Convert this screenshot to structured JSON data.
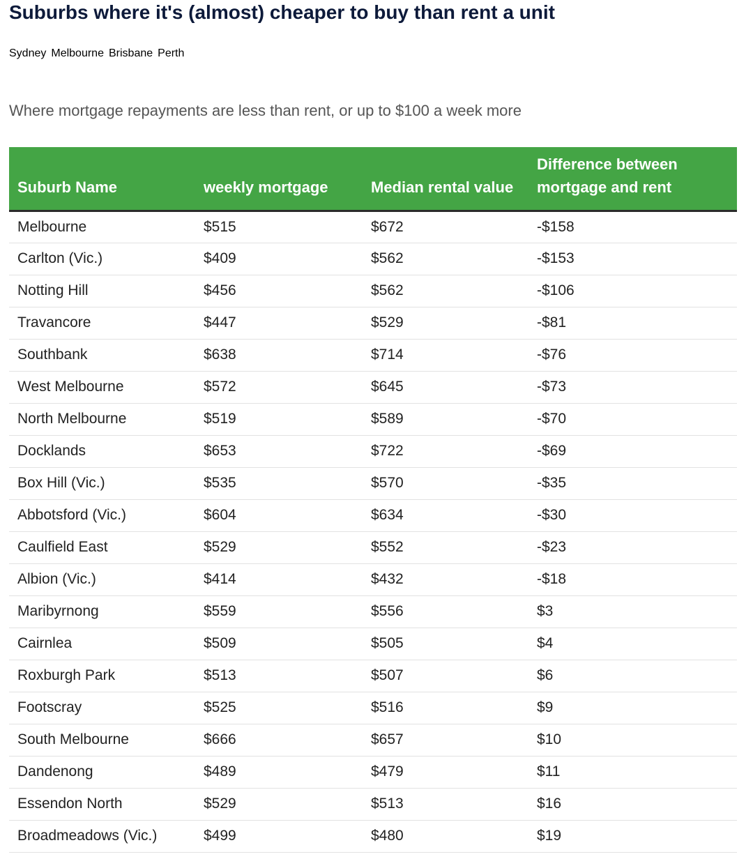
{
  "header": {
    "title": "Suburbs where it's (almost) cheaper to buy than rent a unit",
    "tabs": [
      {
        "label": "Sydney"
      },
      {
        "label": "Melbourne",
        "selected": true
      },
      {
        "label": "Brisbane"
      },
      {
        "label": "Perth"
      }
    ],
    "subtitle": "Where mortgage repayments are less than rent, or up to $100 a week more"
  },
  "table": {
    "columns": [
      "Suburb Name",
      "weekly mortgage",
      "Median rental value",
      "Difference between mortgage and rent"
    ],
    "rows": [
      [
        "Melbourne",
        "$515",
        "$672",
        "-$158"
      ],
      [
        "Carlton (Vic.)",
        "$409",
        "$562",
        "-$153"
      ],
      [
        "Notting Hill",
        "$456",
        "$562",
        "-$106"
      ],
      [
        "Travancore",
        "$447",
        "$529",
        "-$81"
      ],
      [
        "Southbank",
        "$638",
        "$714",
        "-$76"
      ],
      [
        "West Melbourne",
        "$572",
        "$645",
        "-$73"
      ],
      [
        "North Melbourne",
        "$519",
        "$589",
        "-$70"
      ],
      [
        "Docklands",
        "$653",
        "$722",
        "-$69"
      ],
      [
        "Box Hill (Vic.)",
        "$535",
        "$570",
        "-$35"
      ],
      [
        "Abbotsford (Vic.)",
        "$604",
        "$634",
        "-$30"
      ],
      [
        "Caulfield East",
        "$529",
        "$552",
        "-$23"
      ],
      [
        "Albion (Vic.)",
        "$414",
        "$432",
        "-$18"
      ],
      [
        "Maribyrnong",
        "$559",
        "$556",
        "$3"
      ],
      [
        "Cairnlea",
        "$509",
        "$505",
        "$4"
      ],
      [
        "Roxburgh Park",
        "$513",
        "$507",
        "$6"
      ],
      [
        "Footscray",
        "$525",
        "$516",
        "$9"
      ],
      [
        "South Melbourne",
        "$666",
        "$657",
        "$10"
      ],
      [
        "Dandenong",
        "$489",
        "$479",
        "$11"
      ],
      [
        "Essendon North",
        "$529",
        "$513",
        "$16"
      ],
      [
        "Broadmeadows (Vic.)",
        "$499",
        "$480",
        "$19"
      ]
    ]
  }
}
